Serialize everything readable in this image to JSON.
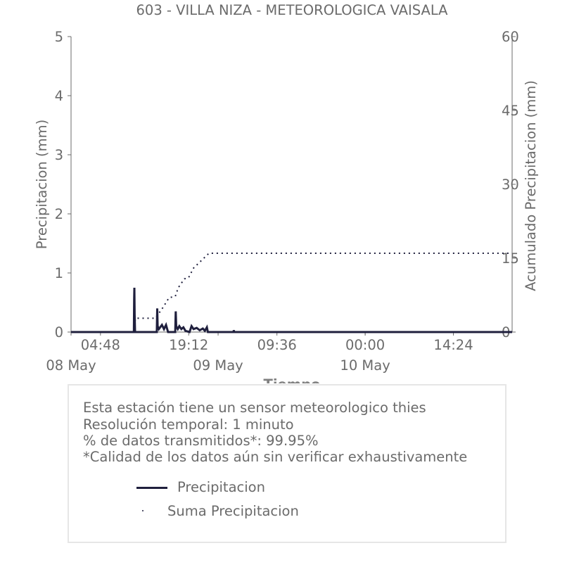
{
  "chart_data": {
    "type": "line",
    "title": "603 - VILLA NIZA - METEOROLOGICA VAISALA",
    "xlabel": "Tiempo",
    "ylabel": "Precipitacion (mm)",
    "ylabel_right": "Acumulado Precipitacion (mm)",
    "x_range": [
      "2024-05-08 00:00",
      "2024-05-10 23:59"
    ],
    "ylim": [
      0,
      5
    ],
    "ylim_right": [
      0,
      60
    ],
    "yticks": [
      "0",
      "1",
      "2",
      "3",
      "4",
      "5"
    ],
    "yticks_right": [
      "0",
      "15",
      "30",
      "45",
      "60"
    ],
    "xticks_time": [
      {
        "t": "2024-05-08 04:48",
        "label": "04:48"
      },
      {
        "t": "2024-05-08 19:12",
        "label": "19:12"
      },
      {
        "t": "2024-05-09 09:36",
        "label": "09:36"
      },
      {
        "t": "2024-05-10 00:00",
        "label": "00:00"
      },
      {
        "t": "2024-05-10 14:24",
        "label": "14:24"
      }
    ],
    "xticks_date": [
      {
        "t": "2024-05-08 00:00",
        "label": "08 May"
      },
      {
        "t": "2024-05-09 00:00",
        "label": "09 May"
      },
      {
        "t": "2024-05-10 00:00",
        "label": "10 May"
      }
    ],
    "grid": false,
    "series": [
      {
        "name": "Precipitacion",
        "style": "solid",
        "color": "#1f1f3d",
        "points": [
          [
            "2024-05-08 00:00",
            0
          ],
          [
            "2024-05-08 10:15",
            0
          ],
          [
            "2024-05-08 10:18",
            0.55
          ],
          [
            "2024-05-08 10:20",
            0.75
          ],
          [
            "2024-05-08 10:23",
            0.3
          ],
          [
            "2024-05-08 10:27",
            0
          ],
          [
            "2024-05-08 14:00",
            0
          ],
          [
            "2024-05-08 14:04",
            0.4
          ],
          [
            "2024-05-08 14:08",
            0.1
          ],
          [
            "2024-05-08 14:20",
            0.05
          ],
          [
            "2024-05-08 14:50",
            0.12
          ],
          [
            "2024-05-08 15:10",
            0.05
          ],
          [
            "2024-05-08 15:30",
            0.12
          ],
          [
            "2024-05-08 15:50",
            0
          ],
          [
            "2024-05-08 17:00",
            0
          ],
          [
            "2024-05-08 17:05",
            0.35
          ],
          [
            "2024-05-08 17:10",
            0.1
          ],
          [
            "2024-05-08 17:25",
            0.05
          ],
          [
            "2024-05-08 17:40",
            0.1
          ],
          [
            "2024-05-08 18:00",
            0.05
          ],
          [
            "2024-05-08 18:20",
            0.08
          ],
          [
            "2024-05-08 18:40",
            0.02
          ],
          [
            "2024-05-08 19:20",
            0
          ],
          [
            "2024-05-08 19:40",
            0.1
          ],
          [
            "2024-05-08 20:00",
            0.05
          ],
          [
            "2024-05-08 20:30",
            0.07
          ],
          [
            "2024-05-08 21:00",
            0.03
          ],
          [
            "2024-05-08 21:30",
            0.06
          ],
          [
            "2024-05-08 21:50",
            0.02
          ],
          [
            "2024-05-08 22:10",
            0.08
          ],
          [
            "2024-05-08 22:20",
            0
          ],
          [
            "2024-05-09 02:30",
            0
          ],
          [
            "2024-05-09 02:34",
            0.03
          ],
          [
            "2024-05-09 02:38",
            0
          ],
          [
            "2024-05-10 23:59",
            0
          ]
        ]
      },
      {
        "name": "Suma Precipitacion",
        "style": "dotted",
        "color": "#1f1f3d",
        "axis": "right",
        "points": [
          [
            "2024-05-08 00:00",
            0
          ],
          [
            "2024-05-08 10:15",
            0
          ],
          [
            "2024-05-08 10:30",
            2.8
          ],
          [
            "2024-05-08 13:45",
            2.8
          ],
          [
            "2024-05-08 15:00",
            5
          ],
          [
            "2024-05-08 16:00",
            7
          ],
          [
            "2024-05-08 17:00",
            7.2
          ],
          [
            "2024-05-08 17:30",
            9
          ],
          [
            "2024-05-08 18:30",
            10.8
          ],
          [
            "2024-05-08 19:10",
            11
          ],
          [
            "2024-05-08 20:00",
            13
          ],
          [
            "2024-05-08 21:30",
            14.8
          ],
          [
            "2024-05-08 22:30",
            16
          ],
          [
            "2024-05-10 23:59",
            16
          ]
        ]
      }
    ]
  },
  "info": {
    "line1": "Esta estación tiene un sensor meteorologico thies",
    "line2": "Resolución temporal: 1 minuto",
    "line3": "% de datos transmitidos*: 99.95%",
    "line4": "*Calidad de los datos aún sin verificar exhaustivamente"
  },
  "legend": {
    "precip_label": "Precipitacion",
    "sum_label": "Suma Precipitacion"
  }
}
